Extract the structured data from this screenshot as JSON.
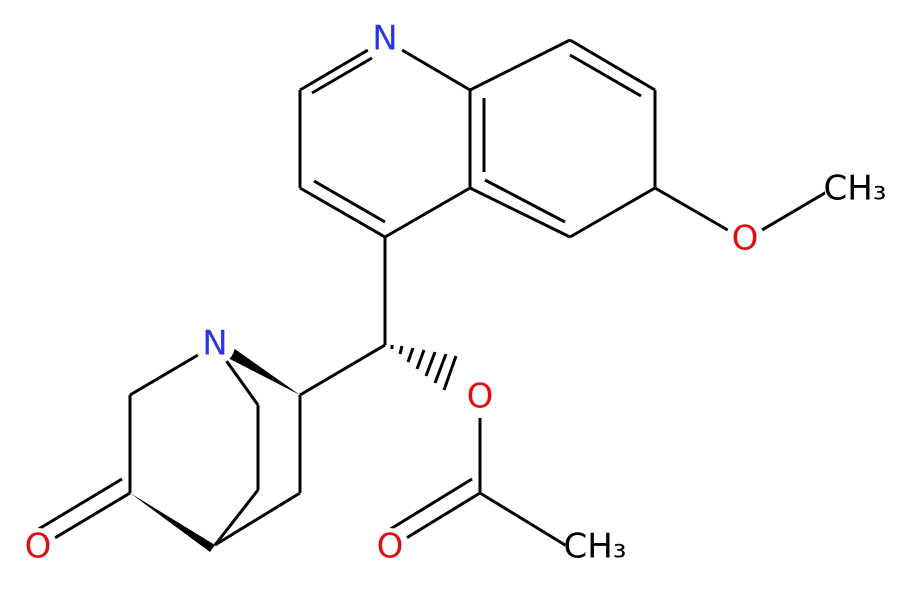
{
  "atoms": [
    {
      "label": "N"
    },
    {
      "label": "O"
    },
    {
      "label": "CH₃"
    },
    {
      "label": "N"
    },
    {
      "label": "O"
    },
    {
      "label": "O"
    },
    {
      "label": "CH₃"
    },
    {
      "label": "O"
    }
  ]
}
